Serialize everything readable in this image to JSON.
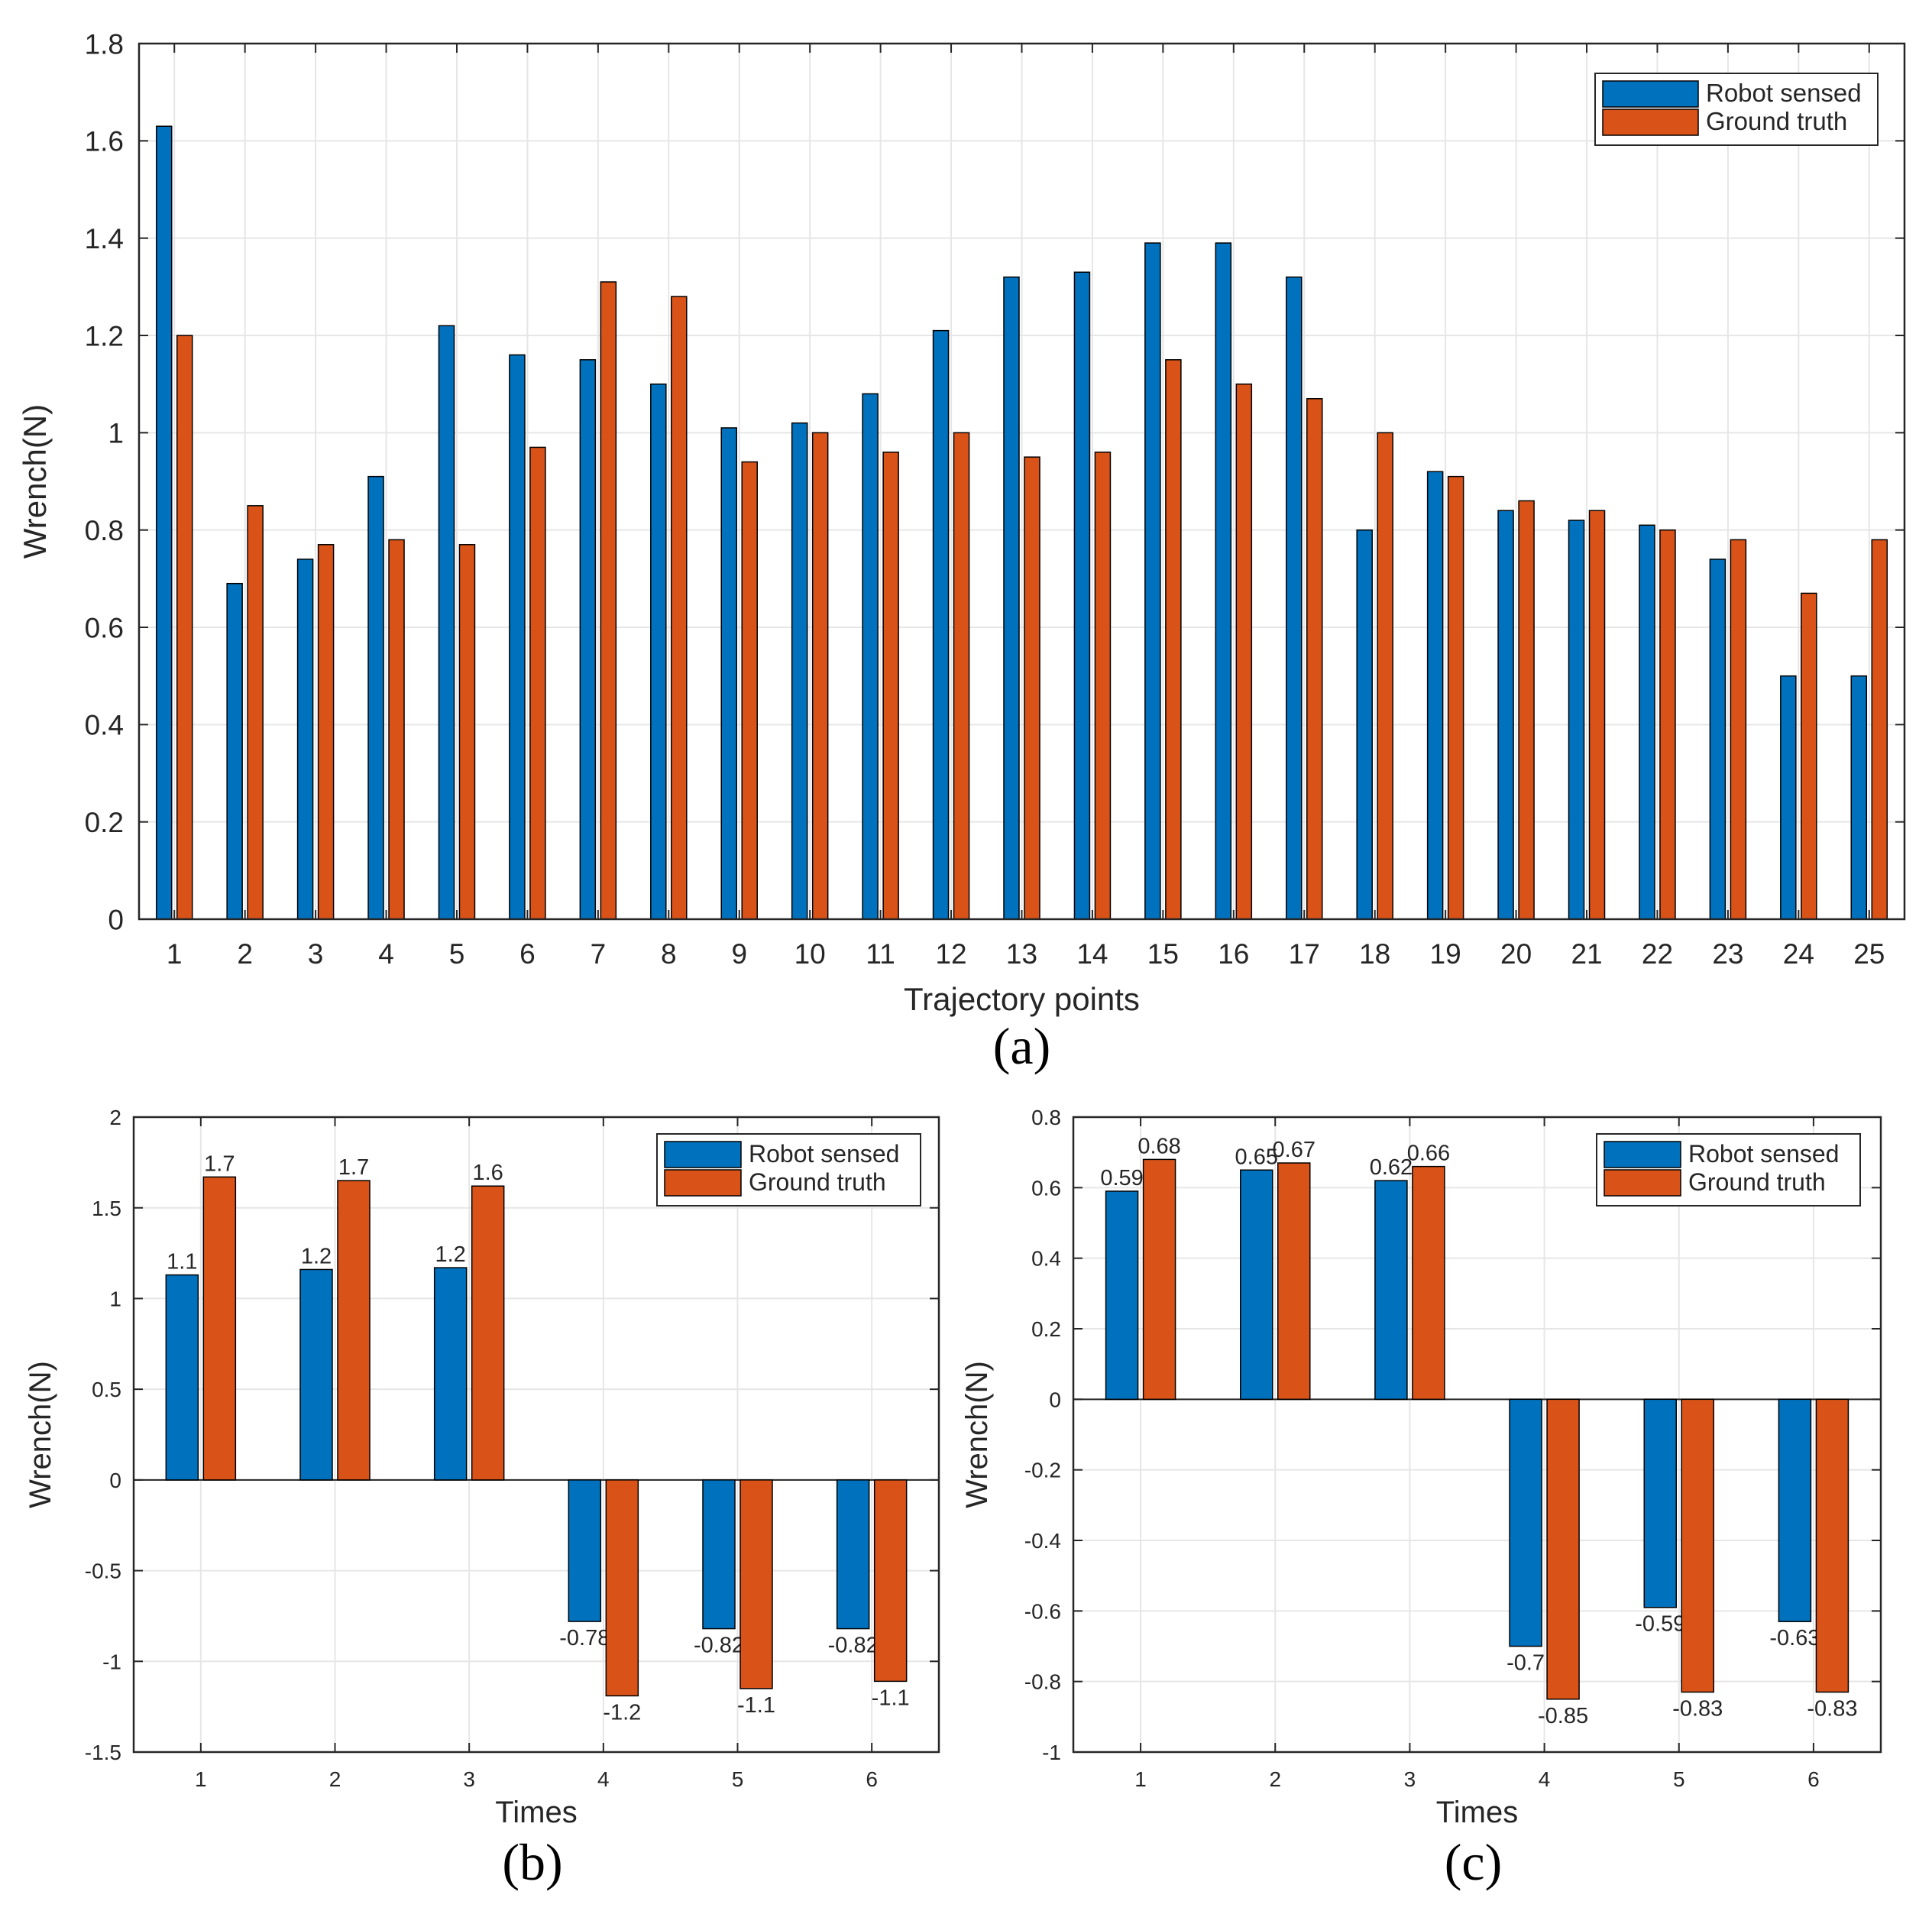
{
  "colors": {
    "robot": "#0072BD",
    "truth": "#D95319",
    "grid": "#e6e6e6",
    "axis": "#262626",
    "bar_edge": "#000000"
  },
  "chart_data": [
    {
      "id": "a",
      "type": "bar",
      "panel_label": "(a)",
      "xlabel": "Trajectory points",
      "ylabel": "Wrench(N)",
      "ylim": [
        0,
        1.8
      ],
      "yticks": [
        0,
        0.2,
        0.4,
        0.6,
        0.8,
        1,
        1.2,
        1.4,
        1.6,
        1.8
      ],
      "categories": [
        "1",
        "2",
        "3",
        "4",
        "5",
        "6",
        "7",
        "8",
        "9",
        "10",
        "11",
        "12",
        "13",
        "14",
        "15",
        "16",
        "17",
        "18",
        "19",
        "20",
        "21",
        "22",
        "23",
        "24",
        "25"
      ],
      "grid": true,
      "legend_position": "top-right",
      "series": [
        {
          "name": "Robot sensed",
          "color_key": "robot",
          "values": [
            1.63,
            0.69,
            0.74,
            0.91,
            1.22,
            1.16,
            1.15,
            1.1,
            1.01,
            1.02,
            1.08,
            1.21,
            1.32,
            1.33,
            1.39,
            1.39,
            1.32,
            0.8,
            0.92,
            0.84,
            0.82,
            0.81,
            0.74,
            0.5,
            0.5
          ]
        },
        {
          "name": "Ground truth",
          "color_key": "truth",
          "values": [
            1.2,
            0.85,
            0.77,
            0.78,
            0.77,
            0.97,
            1.31,
            1.28,
            0.94,
            1.0,
            0.96,
            1.0,
            0.95,
            0.96,
            1.15,
            1.1,
            1.07,
            1.0,
            0.91,
            0.86,
            0.84,
            0.8,
            0.78,
            0.67,
            0.78
          ]
        }
      ]
    },
    {
      "id": "b",
      "type": "bar",
      "panel_label": "(b)",
      "xlabel": "Times",
      "ylabel": "Wrench(N)",
      "ylim": [
        -1.5,
        2
      ],
      "yticks": [
        -1.5,
        -1,
        -0.5,
        0,
        0.5,
        1,
        1.5,
        2
      ],
      "categories": [
        "1",
        "2",
        "3",
        "4",
        "5",
        "6"
      ],
      "grid": true,
      "legend_position": "top-right",
      "series": [
        {
          "name": "Robot sensed",
          "color_key": "robot",
          "values": [
            1.13,
            1.16,
            1.17,
            -0.78,
            -0.82,
            -0.82
          ],
          "data_labels": [
            "1.1",
            "1.2",
            "1.2",
            "-0.78",
            "-0.82",
            "-0.82"
          ]
        },
        {
          "name": "Ground truth",
          "color_key": "truth",
          "values": [
            1.67,
            1.65,
            1.62,
            -1.19,
            -1.15,
            -1.11
          ],
          "data_labels": [
            "1.7",
            "1.7",
            "1.6",
            "-1.2",
            "-1.1",
            "-1.1"
          ]
        }
      ]
    },
    {
      "id": "c",
      "type": "bar",
      "panel_label": "(c)",
      "xlabel": "Times",
      "ylabel": "Wrench(N)",
      "ylim": [
        -1,
        0.8
      ],
      "yticks": [
        -1,
        -0.8,
        -0.6,
        -0.4,
        -0.2,
        0,
        0.2,
        0.4,
        0.6,
        0.8
      ],
      "categories": [
        "1",
        "2",
        "3",
        "4",
        "5",
        "6"
      ],
      "grid": true,
      "legend_position": "top-right",
      "series": [
        {
          "name": "Robot sensed",
          "color_key": "robot",
          "values": [
            0.59,
            0.65,
            0.62,
            -0.7,
            -0.59,
            -0.63
          ],
          "data_labels": [
            "0.59",
            "0.65",
            "0.62",
            "-0.7",
            "-0.59",
            "-0.63"
          ]
        },
        {
          "name": "Ground truth",
          "color_key": "truth",
          "values": [
            0.68,
            0.67,
            0.66,
            -0.85,
            -0.83,
            -0.83
          ],
          "data_labels": [
            "0.68",
            "0.67",
            "0.66",
            "-0.85",
            "-0.83",
            "-0.83"
          ]
        }
      ]
    }
  ]
}
